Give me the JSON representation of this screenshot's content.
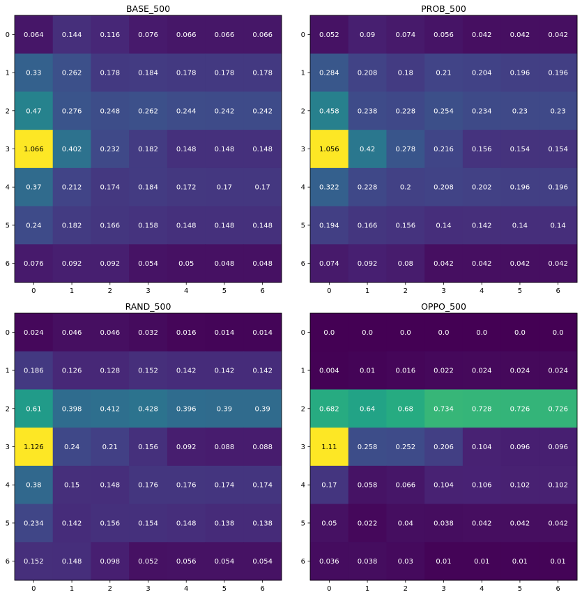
{
  "chart_data": [
    {
      "type": "heatmap",
      "title": "BASE_500",
      "x_ticks": [
        "0",
        "1",
        "2",
        "3",
        "4",
        "5",
        "6"
      ],
      "y_ticks": [
        "0",
        "1",
        "2",
        "3",
        "4",
        "5",
        "6"
      ],
      "colormap": "viridis",
      "vmin": 0.0,
      "values": [
        [
          0.064,
          0.144,
          0.116,
          0.076,
          0.066,
          0.066,
          0.066
        ],
        [
          0.33,
          0.262,
          0.178,
          0.184,
          0.178,
          0.178,
          0.178
        ],
        [
          0.47,
          0.276,
          0.248,
          0.262,
          0.244,
          0.242,
          0.242
        ],
        [
          1.066,
          0.402,
          0.232,
          0.182,
          0.148,
          0.148,
          0.148
        ],
        [
          0.37,
          0.212,
          0.174,
          0.184,
          0.172,
          0.17,
          0.17
        ],
        [
          0.24,
          0.182,
          0.166,
          0.158,
          0.148,
          0.148,
          0.148
        ],
        [
          0.076,
          0.092,
          0.092,
          0.054,
          0.05,
          0.048,
          0.048
        ]
      ],
      "labels": [
        [
          "0.064",
          "0.144",
          "0.116",
          "0.076",
          "0.066",
          "0.066",
          "0.066"
        ],
        [
          "0.33",
          "0.262",
          "0.178",
          "0.184",
          "0.178",
          "0.178",
          "0.178"
        ],
        [
          "0.47",
          "0.276",
          "0.248",
          "0.262",
          "0.244",
          "0.242",
          "0.242"
        ],
        [
          "1.066",
          "0.402",
          "0.232",
          "0.182",
          "0.148",
          "0.148",
          "0.148"
        ],
        [
          "0.37",
          "0.212",
          "0.174",
          "0.184",
          "0.172",
          "0.17",
          "0.17"
        ],
        [
          "0.24",
          "0.182",
          "0.166",
          "0.158",
          "0.148",
          "0.148",
          "0.148"
        ],
        [
          "0.076",
          "0.092",
          "0.092",
          "0.054",
          "0.05",
          "0.048",
          "0.048"
        ]
      ]
    },
    {
      "type": "heatmap",
      "title": "PROB_500",
      "x_ticks": [
        "0",
        "1",
        "2",
        "3",
        "4",
        "5",
        "6"
      ],
      "y_ticks": [
        "0",
        "1",
        "2",
        "3",
        "4",
        "5",
        "6"
      ],
      "colormap": "viridis",
      "vmin": 0.0,
      "values": [
        [
          0.052,
          0.09,
          0.074,
          0.056,
          0.042,
          0.042,
          0.042
        ],
        [
          0.284,
          0.208,
          0.18,
          0.21,
          0.204,
          0.196,
          0.196
        ],
        [
          0.458,
          0.238,
          0.228,
          0.254,
          0.234,
          0.23,
          0.23
        ],
        [
          1.056,
          0.42,
          0.278,
          0.216,
          0.156,
          0.154,
          0.154
        ],
        [
          0.322,
          0.228,
          0.2,
          0.208,
          0.202,
          0.196,
          0.196
        ],
        [
          0.194,
          0.166,
          0.156,
          0.14,
          0.142,
          0.14,
          0.14
        ],
        [
          0.074,
          0.092,
          0.08,
          0.042,
          0.042,
          0.042,
          0.042
        ]
      ],
      "labels": [
        [
          "0.052",
          "0.09",
          "0.074",
          "0.056",
          "0.042",
          "0.042",
          "0.042"
        ],
        [
          "0.284",
          "0.208",
          "0.18",
          "0.21",
          "0.204",
          "0.196",
          "0.196"
        ],
        [
          "0.458",
          "0.238",
          "0.228",
          "0.254",
          "0.234",
          "0.23",
          "0.23"
        ],
        [
          "1.056",
          "0.42",
          "0.278",
          "0.216",
          "0.156",
          "0.154",
          "0.154"
        ],
        [
          "0.322",
          "0.228",
          "0.2",
          "0.208",
          "0.202",
          "0.196",
          "0.196"
        ],
        [
          "0.194",
          "0.166",
          "0.156",
          "0.14",
          "0.142",
          "0.14",
          "0.14"
        ],
        [
          "0.074",
          "0.092",
          "0.08",
          "0.042",
          "0.042",
          "0.042",
          "0.042"
        ]
      ]
    },
    {
      "type": "heatmap",
      "title": "RAND_500",
      "x_ticks": [
        "0",
        "1",
        "2",
        "3",
        "4",
        "5",
        "6"
      ],
      "y_ticks": [
        "0",
        "1",
        "2",
        "3",
        "4",
        "5",
        "6"
      ],
      "colormap": "viridis",
      "vmin": 0.0,
      "values": [
        [
          0.024,
          0.046,
          0.046,
          0.032,
          0.016,
          0.014,
          0.014
        ],
        [
          0.186,
          0.126,
          0.128,
          0.152,
          0.142,
          0.142,
          0.142
        ],
        [
          0.61,
          0.398,
          0.412,
          0.428,
          0.396,
          0.39,
          0.39
        ],
        [
          1.126,
          0.24,
          0.21,
          0.156,
          0.092,
          0.088,
          0.088
        ],
        [
          0.38,
          0.15,
          0.148,
          0.176,
          0.176,
          0.174,
          0.174
        ],
        [
          0.234,
          0.142,
          0.156,
          0.154,
          0.148,
          0.138,
          0.138
        ],
        [
          0.152,
          0.148,
          0.098,
          0.052,
          0.056,
          0.054,
          0.054
        ]
      ],
      "labels": [
        [
          "0.024",
          "0.046",
          "0.046",
          "0.032",
          "0.016",
          "0.014",
          "0.014"
        ],
        [
          "0.186",
          "0.126",
          "0.128",
          "0.152",
          "0.142",
          "0.142",
          "0.142"
        ],
        [
          "0.61",
          "0.398",
          "0.412",
          "0.428",
          "0.396",
          "0.39",
          "0.39"
        ],
        [
          "1.126",
          "0.24",
          "0.21",
          "0.156",
          "0.092",
          "0.088",
          "0.088"
        ],
        [
          "0.38",
          "0.15",
          "0.148",
          "0.176",
          "0.176",
          "0.174",
          "0.174"
        ],
        [
          "0.234",
          "0.142",
          "0.156",
          "0.154",
          "0.148",
          "0.138",
          "0.138"
        ],
        [
          "0.152",
          "0.148",
          "0.098",
          "0.052",
          "0.056",
          "0.054",
          "0.054"
        ]
      ]
    },
    {
      "type": "heatmap",
      "title": "OPPO_500",
      "x_ticks": [
        "0",
        "1",
        "2",
        "3",
        "4",
        "5",
        "6"
      ],
      "y_ticks": [
        "0",
        "1",
        "2",
        "3",
        "4",
        "5",
        "6"
      ],
      "colormap": "viridis",
      "vmin": 0.0,
      "values": [
        [
          0.0,
          0.0,
          0.0,
          0.0,
          0.0,
          0.0,
          0.0
        ],
        [
          0.004,
          0.01,
          0.016,
          0.022,
          0.024,
          0.024,
          0.024
        ],
        [
          0.682,
          0.64,
          0.68,
          0.734,
          0.728,
          0.726,
          0.726
        ],
        [
          1.11,
          0.258,
          0.252,
          0.206,
          0.104,
          0.096,
          0.096
        ],
        [
          0.17,
          0.058,
          0.066,
          0.104,
          0.106,
          0.102,
          0.102
        ],
        [
          0.05,
          0.022,
          0.04,
          0.038,
          0.042,
          0.042,
          0.042
        ],
        [
          0.036,
          0.038,
          0.03,
          0.01,
          0.01,
          0.01,
          0.01
        ]
      ],
      "labels": [
        [
          "0.0",
          "0.0",
          "0.0",
          "0.0",
          "0.0",
          "0.0",
          "0.0"
        ],
        [
          "0.004",
          "0.01",
          "0.016",
          "0.022",
          "0.024",
          "0.024",
          "0.024"
        ],
        [
          "0.682",
          "0.64",
          "0.68",
          "0.734",
          "0.728",
          "0.726",
          "0.726"
        ],
        [
          "1.11",
          "0.258",
          "0.252",
          "0.206",
          "0.104",
          "0.096",
          "0.096"
        ],
        [
          "0.17",
          "0.058",
          "0.066",
          "0.104",
          "0.106",
          "0.102",
          "0.102"
        ],
        [
          "0.05",
          "0.022",
          "0.04",
          "0.038",
          "0.042",
          "0.042",
          "0.042"
        ],
        [
          "0.036",
          "0.038",
          "0.03",
          "0.01",
          "0.01",
          "0.01",
          "0.01"
        ]
      ]
    }
  ]
}
